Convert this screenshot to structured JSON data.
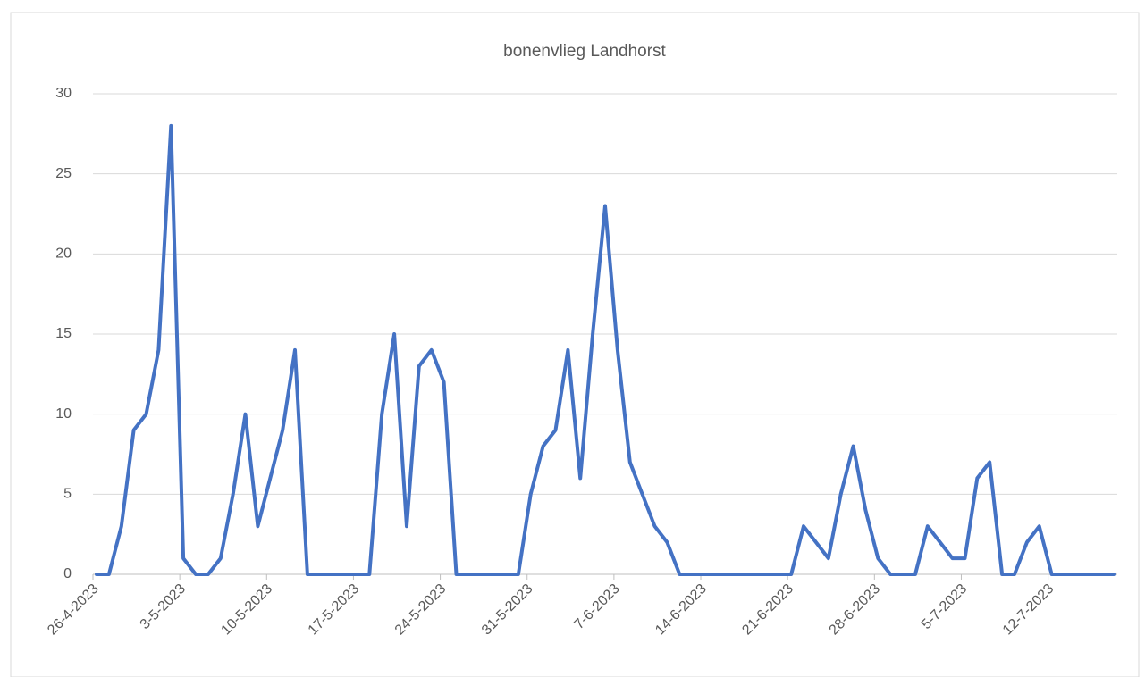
{
  "chart_data": {
    "type": "line",
    "title": "bonenvlieg Landhorst",
    "x": [
      "26-4-2023",
      "27-4-2023",
      "28-4-2023",
      "29-4-2023",
      "30-4-2023",
      "1-5-2023",
      "2-5-2023",
      "3-5-2023",
      "4-5-2023",
      "5-5-2023",
      "6-5-2023",
      "7-5-2023",
      "8-5-2023",
      "9-5-2023",
      "10-5-2023",
      "11-5-2023",
      "12-5-2023",
      "13-5-2023",
      "14-5-2023",
      "15-5-2023",
      "16-5-2023",
      "17-5-2023",
      "18-5-2023",
      "19-5-2023",
      "20-5-2023",
      "21-5-2023",
      "22-5-2023",
      "23-5-2023",
      "24-5-2023",
      "25-5-2023",
      "26-5-2023",
      "27-5-2023",
      "28-5-2023",
      "29-5-2023",
      "30-5-2023",
      "31-5-2023",
      "1-6-2023",
      "2-6-2023",
      "3-6-2023",
      "4-6-2023",
      "5-6-2023",
      "6-6-2023",
      "7-6-2023",
      "8-6-2023",
      "9-6-2023",
      "10-6-2023",
      "11-6-2023",
      "12-6-2023",
      "13-6-2023",
      "14-6-2023",
      "15-6-2023",
      "16-6-2023",
      "17-6-2023",
      "18-6-2023",
      "19-6-2023",
      "20-6-2023",
      "21-6-2023",
      "22-6-2023",
      "23-6-2023",
      "24-6-2023",
      "25-6-2023",
      "26-6-2023",
      "27-6-2023",
      "28-6-2023",
      "29-6-2023",
      "30-6-2023",
      "1-7-2023",
      "2-7-2023",
      "3-7-2023",
      "4-7-2023",
      "5-7-2023",
      "6-7-2023",
      "7-7-2023",
      "8-7-2023",
      "9-7-2023",
      "10-7-2023",
      "11-7-2023",
      "12-7-2023",
      "13-7-2023",
      "14-7-2023",
      "15-7-2023",
      "16-7-2023",
      "17-7-2023"
    ],
    "values": [
      0,
      0,
      3,
      9,
      10,
      14,
      28,
      1,
      0,
      0,
      1,
      5,
      10,
      3,
      6,
      9,
      14,
      0,
      0,
      0,
      0,
      0,
      0,
      10,
      15,
      3,
      13,
      14,
      12,
      0,
      0,
      0,
      0,
      0,
      0,
      5,
      8,
      9,
      14,
      6,
      15,
      23,
      14,
      7,
      5,
      3,
      2,
      0,
      0,
      0,
      0,
      0,
      0,
      0,
      0,
      0,
      0,
      3,
      2,
      1,
      5,
      8,
      4,
      1,
      0,
      0,
      0,
      3,
      2,
      1,
      1,
      6,
      7,
      0,
      0,
      2,
      3,
      0,
      0,
      0,
      0,
      0,
      0
    ],
    "color": "#4472c4",
    "xticks": [
      "26-4-2023",
      "3-5-2023",
      "10-5-2023",
      "17-5-2023",
      "24-5-2023",
      "31-5-2023",
      "7-6-2023",
      "14-6-2023",
      "21-6-2023",
      "28-6-2023",
      "5-7-2023",
      "12-7-2023"
    ],
    "ylim": [
      0,
      30
    ],
    "yticks": [
      0,
      5,
      10,
      15,
      20,
      25,
      30
    ],
    "grid": true
  }
}
